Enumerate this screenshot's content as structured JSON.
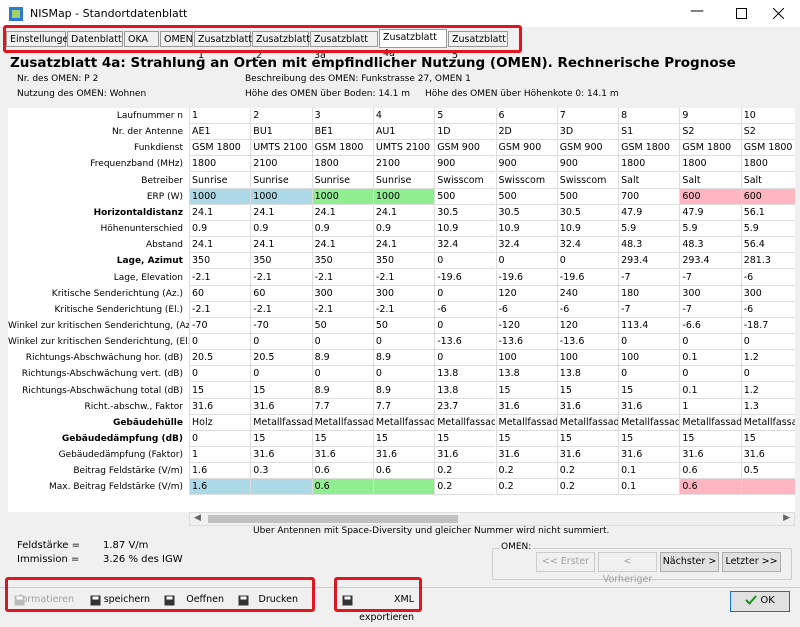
{
  "window": {
    "title": "NISMap - Standortdatenblatt"
  },
  "tabs": [
    "Einstellungen",
    "Datenblatt",
    "OKA",
    "OMEN",
    "Zusatzblatt 1",
    "Zusatzblatt 2",
    "Zusatzblatt 3a",
    "Zusatzblatt 4a",
    "Zusatzblatt 5"
  ],
  "active_tab": 7,
  "heading": "Zusatzblatt 4a: Strahlung an Orten mit empfindlicher Nutzung (OMEN). Rechnerische Prognose",
  "info": {
    "nr": "Nr. des OMEN: P 2",
    "beschreibung": "Beschreibung des OMEN: Funkstrasse 27, OMEN 1",
    "nutzung": "Nutzung des OMEN: Wohnen",
    "hoehe_boden": "Höhe des OMEN über Boden: 14.1 m",
    "hoehe_kote": "Höhe des OMEN über Höhenkote 0: 14.1 m"
  },
  "table": {
    "rows": [
      {
        "label": "Laufnummer n",
        "values": [
          1,
          2,
          3,
          4,
          5,
          6,
          7,
          8,
          9,
          10
        ]
      },
      {
        "label": "Nr. der Antenne",
        "values": [
          "AE1",
          "BU1",
          "BE1",
          "AU1",
          "1D",
          "2D",
          "3D",
          "S1",
          "S2",
          "S2"
        ]
      },
      {
        "label": "Funkdienst",
        "values": [
          "GSM 1800",
          "UMTS 2100",
          "GSM 1800",
          "UMTS 2100",
          "GSM 900",
          "GSM 900",
          "GSM 900",
          "GSM 1800",
          "GSM 1800",
          "GSM 1800"
        ]
      },
      {
        "label": "Frequenzband (MHz)",
        "values": [
          1800,
          2100,
          1800,
          2100,
          900,
          900,
          900,
          1800,
          1800,
          1800
        ]
      },
      {
        "label": "Betreiber",
        "values": [
          "Sunrise",
          "Sunrise",
          "Sunrise",
          "Sunrise",
          "Swisscom",
          "Swisscom",
          "Swisscom",
          "Salt",
          "Salt",
          "Salt"
        ]
      },
      {
        "label": "ERP (W)",
        "values": [
          1000,
          1000,
          1000,
          1000,
          500,
          500,
          500,
          700,
          600,
          600
        ],
        "colors": [
          "#add8e6",
          "#add8e6",
          "#90ee90",
          "#90ee90",
          null,
          null,
          null,
          null,
          "#ffb6c1",
          "#ffb6c1"
        ]
      },
      {
        "label": "Horizontaldistanz",
        "bold": true,
        "values": [
          24.1,
          24.1,
          24.1,
          24.1,
          30.5,
          30.5,
          30.5,
          47.9,
          47.9,
          56.1
        ]
      },
      {
        "label": "Höhenunterschied",
        "values": [
          0.9,
          0.9,
          0.9,
          0.9,
          10.9,
          10.9,
          10.9,
          5.9,
          5.9,
          5.9
        ]
      },
      {
        "label": "Abstand",
        "values": [
          24.1,
          24.1,
          24.1,
          24.1,
          32.4,
          32.4,
          32.4,
          48.3,
          48.3,
          56.4
        ]
      },
      {
        "label": "Lage, Azimut",
        "bold": true,
        "values": [
          350,
          350,
          350,
          350,
          0,
          0,
          0,
          293.4,
          293.4,
          281.3
        ]
      },
      {
        "label": "Lage, Elevation",
        "values": [
          -2.1,
          -2.1,
          -2.1,
          -2.1,
          -19.6,
          -19.6,
          -19.6,
          -7,
          -7,
          -6
        ]
      },
      {
        "label": "Kritische Senderichtung (Az.)",
        "values": [
          60,
          60,
          300,
          300,
          0,
          120,
          240,
          180,
          300,
          300
        ]
      },
      {
        "label": "Kritische Senderichtung (El.)",
        "values": [
          -2.1,
          -2.1,
          -2.1,
          -2.1,
          -6,
          -6,
          -6,
          -7,
          -7,
          -6
        ]
      },
      {
        "label": "Winkel zur kritischen Senderichtung, (Az.)",
        "values": [
          -70,
          -70,
          50,
          50,
          0,
          -120,
          120,
          113.4,
          -6.6,
          -18.7
        ]
      },
      {
        "label": "Winkel zur kritischen Senderichtung, (El.)",
        "values": [
          0,
          0,
          0,
          0,
          -13.6,
          -13.6,
          -13.6,
          0,
          0,
          0
        ]
      },
      {
        "label": "Richtungs-Abschwächung hor. (dB)",
        "values": [
          20.5,
          20.5,
          8.9,
          8.9,
          0,
          100,
          100,
          100,
          0.1,
          1.2
        ]
      },
      {
        "label": "Richtungs-Abschwächung vert. (dB)",
        "values": [
          0,
          0,
          0,
          0,
          13.8,
          13.8,
          13.8,
          0,
          0,
          0
        ]
      },
      {
        "label": "Richtungs-Abschwächung total (dB)",
        "values": [
          15,
          15,
          8.9,
          8.9,
          13.8,
          15,
          15,
          15,
          0.1,
          1.2
        ]
      },
      {
        "label": "Richt.-abschw., Faktor",
        "values": [
          31.6,
          31.6,
          7.7,
          7.7,
          23.7,
          31.6,
          31.6,
          31.6,
          1,
          1.3
        ]
      },
      {
        "label": "Gebäudehülle",
        "bold": true,
        "values": [
          "Holz",
          "Metallfassade",
          "Metallfassade",
          "Metallfassade",
          "Metallfassade",
          "Metallfassade",
          "Metallfassade",
          "Metallfassade",
          "Metallfassade",
          "Metallfassade"
        ]
      },
      {
        "label": "Gebäudedämpfung (dB)",
        "bold": true,
        "values": [
          0,
          15,
          15,
          15,
          15,
          15,
          15,
          15,
          15,
          15
        ]
      },
      {
        "label": "Gebäudedämpfung (Faktor)",
        "values": [
          1,
          31.6,
          31.6,
          31.6,
          31.6,
          31.6,
          31.6,
          31.6,
          31.6,
          31.6
        ]
      },
      {
        "label": "Beitrag Feldstärke (V/m)",
        "values": [
          1.6,
          0.3,
          0.6,
          0.6,
          0.2,
          0.2,
          0.2,
          0.1,
          0.6,
          0.5
        ]
      },
      {
        "label": "Max. Beitrag Feldstärke (V/m)",
        "values": [
          1.6,
          null,
          0.6,
          null,
          0.2,
          0.2,
          0.2,
          0.1,
          0.6,
          null
        ],
        "colors": [
          "#add8e6",
          "#add8e6",
          "#90ee90",
          "#90ee90",
          null,
          null,
          null,
          null,
          "#ffb6c1",
          "#ffb6c1"
        ]
      }
    ]
  },
  "note": "Uber Antennen mit Space-Diversity und gleicher Nummer wird nicht summiert.",
  "summary": {
    "feld_label": "Feldstärke =",
    "feld_value": "1.87 V/m",
    "imm_label": "Immission =",
    "imm_value": "3.26 % des IGW"
  },
  "omen_nav": {
    "label": "OMEN:",
    "buttons": [
      {
        "text": "<< Erster",
        "enabled": false
      },
      {
        "text": "< Vorheriger",
        "enabled": false
      },
      {
        "text": "Nächster >",
        "enabled": true
      },
      {
        "text": "Letzter >>",
        "enabled": true
      }
    ]
  },
  "toolbar": [
    {
      "text": "formatieren",
      "enabled": false
    },
    {
      "text": "speichern",
      "enabled": true
    },
    {
      "text": "Oeffnen",
      "enabled": true
    },
    {
      "text": "Drucken",
      "enabled": true
    },
    {
      "text": "XML exportieren",
      "enabled": true
    }
  ],
  "ok": "OK"
}
